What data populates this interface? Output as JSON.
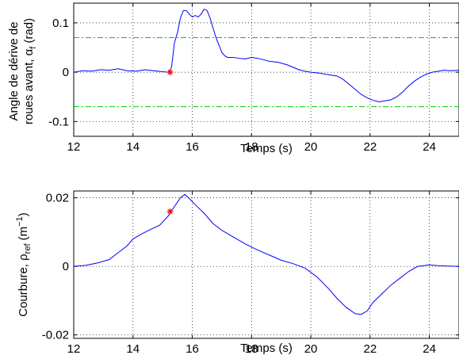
{
  "chart_data": [
    {
      "type": "line",
      "xlim": [
        12,
        25
      ],
      "ylim": [
        -0.13,
        0.14
      ],
      "xticks": [
        12,
        14,
        16,
        18,
        20,
        22,
        24
      ],
      "yticks": [
        -0.1,
        0,
        0.1
      ],
      "ytick_labels": [
        "-0.1",
        "0",
        "0.1"
      ],
      "xlabel": "Temps (s)",
      "ylabel_line1": "Angle de dérive de",
      "ylabel_line2_main": "roues avant, α",
      "ylabel_line2_sub": "f",
      "ylabel_line2_tail": " (rad)",
      "grid": true,
      "colors": {
        "series": "#0000ff",
        "thresholds": "#00cc00",
        "marker": "#ff0000"
      },
      "series": [
        {
          "x": [
            12.0,
            12.3,
            12.6,
            12.9,
            13.2,
            13.5,
            13.8,
            14.1,
            14.4,
            14.7,
            15.0,
            15.2,
            15.3,
            15.4,
            15.5,
            15.6,
            15.7,
            15.8,
            15.9,
            16.0,
            16.1,
            16.2,
            16.3,
            16.4,
            16.5,
            16.6,
            16.7,
            16.8,
            16.9,
            17.0,
            17.1,
            17.2,
            17.4,
            17.6,
            17.8,
            18.0,
            18.3,
            18.6,
            18.9,
            19.2,
            19.4,
            19.6,
            19.8,
            20.0,
            20.3,
            20.6,
            20.9,
            21.1,
            21.3,
            21.5,
            21.7,
            21.9,
            22.1,
            22.3,
            22.5,
            22.7,
            22.9,
            23.1,
            23.3,
            23.5,
            23.7,
            23.9,
            24.1,
            24.3,
            24.5,
            24.7,
            25.0
          ],
          "y": [
            0.0,
            0.003,
            0.002,
            0.005,
            0.004,
            0.007,
            0.003,
            0.002,
            0.005,
            0.003,
            0.001,
            0.0,
            0.01,
            0.06,
            0.08,
            0.11,
            0.125,
            0.125,
            0.118,
            0.112,
            0.115,
            0.112,
            0.118,
            0.128,
            0.125,
            0.11,
            0.09,
            0.07,
            0.055,
            0.04,
            0.033,
            0.03,
            0.03,
            0.028,
            0.027,
            0.03,
            0.027,
            0.022,
            0.02,
            0.015,
            0.01,
            0.005,
            0.002,
            0.0,
            -0.002,
            -0.005,
            -0.008,
            -0.015,
            -0.025,
            -0.035,
            -0.045,
            -0.052,
            -0.057,
            -0.06,
            -0.058,
            -0.056,
            -0.05,
            -0.04,
            -0.028,
            -0.018,
            -0.01,
            -0.004,
            0.0,
            0.002,
            0.004,
            0.003,
            0.004
          ]
        }
      ],
      "thresholds": [
        0.07,
        -0.07
      ],
      "marker": {
        "x": 15.25,
        "y": 0.0
      }
    },
    {
      "type": "line",
      "xlim": [
        12,
        25
      ],
      "ylim": [
        -0.021,
        0.022
      ],
      "xticks": [
        12,
        14,
        16,
        18,
        20,
        22,
        24
      ],
      "yticks": [
        -0.02,
        0,
        0.02
      ],
      "ytick_labels": [
        "-0.02",
        "0",
        "0.02"
      ],
      "xlabel": "Temps (s)",
      "ylabel_main": "Courbure, ρ",
      "ylabel_sub": "ref",
      "ylabel_tail_open": " (m",
      "ylabel_sup": "−1",
      "ylabel_tail_close": ")",
      "grid": true,
      "colors": {
        "series": "#0000ff",
        "marker": "#ff0000"
      },
      "series": [
        {
          "x": [
            12.0,
            12.4,
            12.8,
            13.2,
            13.5,
            13.8,
            14.0,
            14.3,
            14.6,
            14.9,
            15.2,
            15.4,
            15.6,
            15.75,
            15.9,
            16.1,
            16.4,
            16.7,
            17.0,
            17.4,
            17.8,
            18.2,
            18.6,
            19.0,
            19.4,
            19.8,
            20.2,
            20.6,
            20.9,
            21.2,
            21.5,
            21.7,
            21.9,
            22.1,
            22.4,
            22.7,
            23.0,
            23.3,
            23.6,
            24.0,
            24.3,
            24.6,
            25.0
          ],
          "y": [
            0.0,
            0.0003,
            0.001,
            0.002,
            0.004,
            0.006,
            0.008,
            0.0095,
            0.0108,
            0.012,
            0.0148,
            0.0175,
            0.02,
            0.021,
            0.0198,
            0.018,
            0.0155,
            0.0125,
            0.0105,
            0.0085,
            0.0065,
            0.0048,
            0.0033,
            0.0018,
            0.0008,
            -0.0005,
            -0.003,
            -0.0065,
            -0.0095,
            -0.012,
            -0.0138,
            -0.014,
            -0.013,
            -0.0105,
            -0.008,
            -0.0055,
            -0.0035,
            -0.0015,
            0.0,
            0.0004,
            0.0002,
            0.0001,
            0.0
          ]
        }
      ],
      "marker": {
        "x": 15.25,
        "y": 0.016
      }
    }
  ]
}
